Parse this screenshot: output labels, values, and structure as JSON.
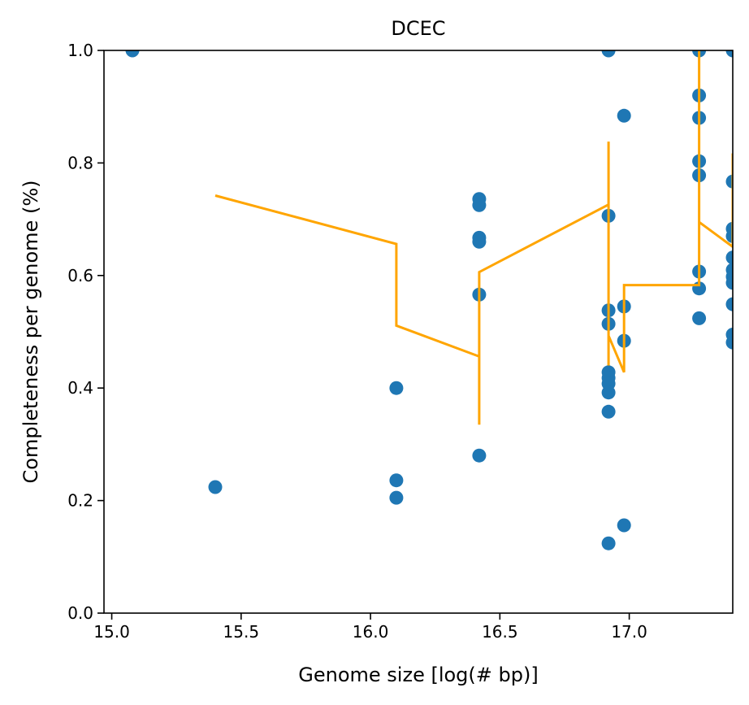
{
  "chart_data": {
    "type": "scatter",
    "title": "DCEC",
    "xlabel": "Genome size [log(# bp)]",
    "ylabel": "Completeness per genome (%)",
    "xlim": [
      14.97,
      17.4
    ],
    "ylim": [
      0.0,
      1.0
    ],
    "xticks": [
      {
        "value": 15.0,
        "label": "15.0"
      },
      {
        "value": 15.5,
        "label": "15.5"
      },
      {
        "value": 16.0,
        "label": "16.0"
      },
      {
        "value": 16.5,
        "label": "16.5"
      },
      {
        "value": 17.0,
        "label": "17.0"
      }
    ],
    "yticks": [
      {
        "value": 0.0,
        "label": "0.0"
      },
      {
        "value": 0.2,
        "label": "0.2"
      },
      {
        "value": 0.4,
        "label": "0.4"
      },
      {
        "value": 0.6,
        "label": "0.6"
      },
      {
        "value": 0.8,
        "label": "0.8"
      },
      {
        "value": 1.0,
        "label": "1.0"
      }
    ],
    "grid": false,
    "series": [
      {
        "type": "scatter",
        "color": "#1f77b4",
        "points": [
          [
            15.08,
            1.0
          ],
          [
            15.4,
            0.224
          ],
          [
            16.1,
            0.4
          ],
          [
            16.1,
            0.236
          ],
          [
            16.1,
            0.205
          ],
          [
            16.42,
            0.736
          ],
          [
            16.42,
            0.725
          ],
          [
            16.42,
            0.667
          ],
          [
            16.42,
            0.66
          ],
          [
            16.42,
            0.566
          ],
          [
            16.42,
            0.28
          ],
          [
            16.92,
            1.0
          ],
          [
            16.92,
            0.706
          ],
          [
            16.92,
            0.538
          ],
          [
            16.92,
            0.514
          ],
          [
            16.92,
            0.428
          ],
          [
            16.92,
            0.418
          ],
          [
            16.92,
            0.408
          ],
          [
            16.92,
            0.392
          ],
          [
            16.92,
            0.358
          ],
          [
            16.92,
            0.124
          ],
          [
            16.98,
            0.884
          ],
          [
            16.98,
            0.545
          ],
          [
            16.98,
            0.484
          ],
          [
            16.98,
            0.156
          ],
          [
            17.27,
            1.0
          ],
          [
            17.27,
            0.92
          ],
          [
            17.27,
            0.88
          ],
          [
            17.27,
            0.803
          ],
          [
            17.27,
            0.778
          ],
          [
            17.27,
            0.607
          ],
          [
            17.27,
            0.577
          ],
          [
            17.27,
            0.524
          ],
          [
            17.4,
            1.0
          ],
          [
            17.4,
            0.767
          ],
          [
            17.4,
            0.683
          ],
          [
            17.4,
            0.67
          ],
          [
            17.4,
            0.632
          ],
          [
            17.4,
            0.61
          ],
          [
            17.4,
            0.598
          ],
          [
            17.4,
            0.587
          ],
          [
            17.4,
            0.549
          ],
          [
            17.4,
            0.495
          ],
          [
            17.4,
            0.481
          ]
        ]
      },
      {
        "type": "line",
        "color": "#ffa500",
        "points": [
          [
            15.4,
            0.742
          ],
          [
            16.1,
            0.656
          ],
          [
            16.1,
            0.511
          ],
          [
            16.42,
            0.456
          ],
          [
            16.42,
            0.335
          ],
          [
            16.42,
            0.606
          ],
          [
            16.92,
            0.726
          ],
          [
            16.92,
            0.838
          ],
          [
            16.92,
            0.44
          ],
          [
            16.92,
            0.493
          ],
          [
            16.98,
            0.428
          ],
          [
            16.98,
            0.583
          ],
          [
            17.27,
            0.583
          ],
          [
            17.27,
            1.0
          ],
          [
            17.27,
            0.695
          ],
          [
            17.4,
            0.651
          ],
          [
            17.4,
            0.817
          ]
        ]
      }
    ]
  }
}
